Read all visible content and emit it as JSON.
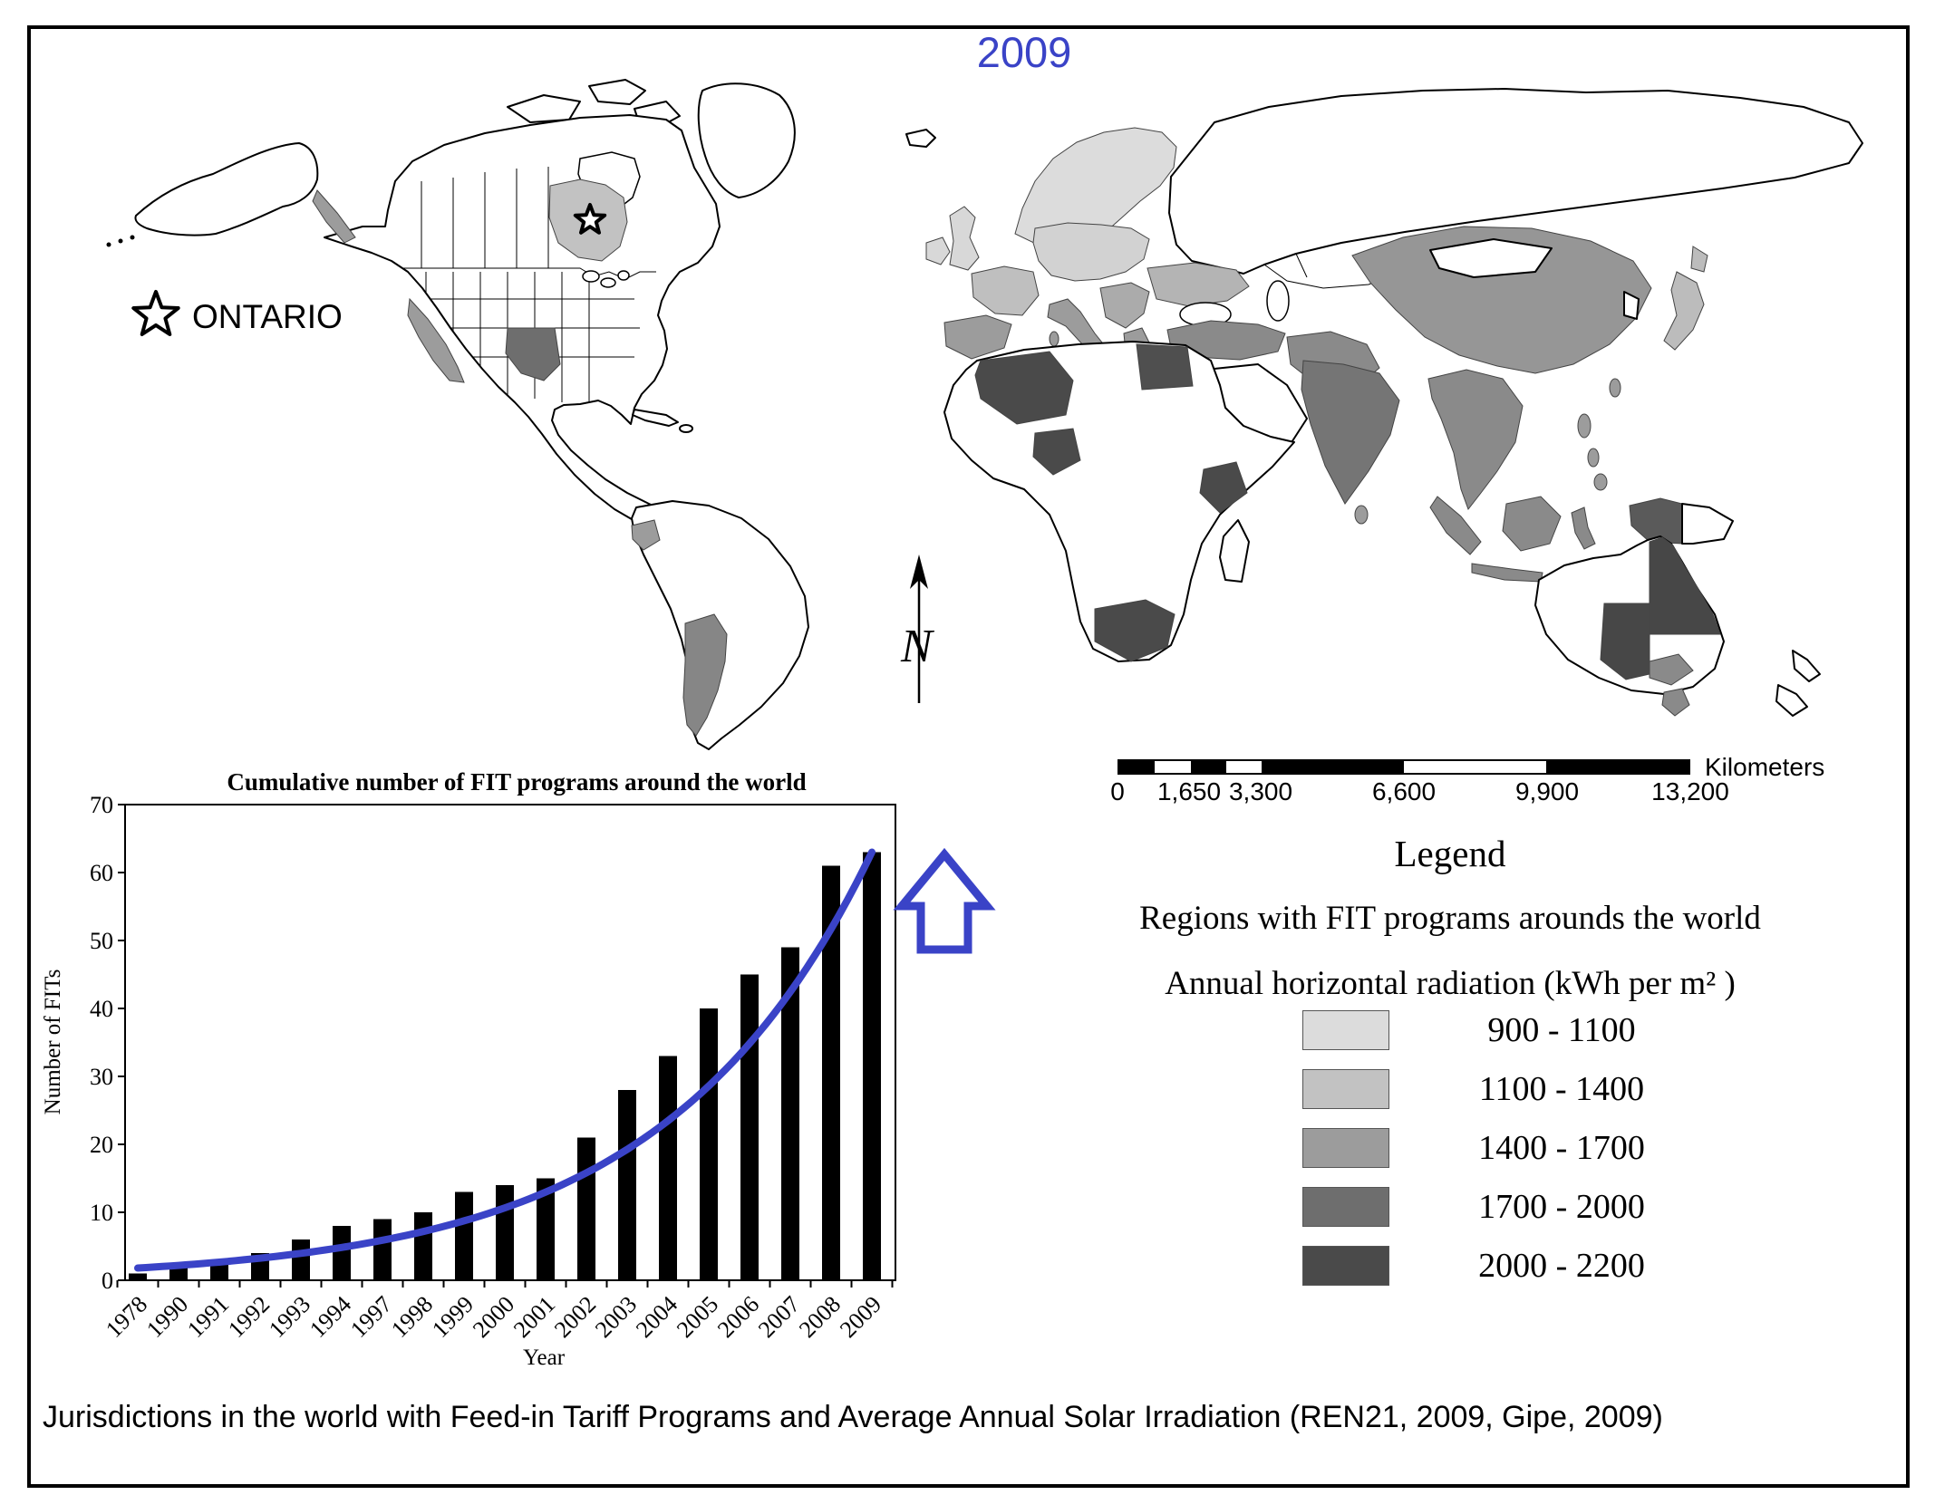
{
  "title_year": "2009",
  "ontario_label": "ONTARIO",
  "map": {
    "north_label": "N",
    "region_colors": {
      "ak_panhandle": "#9c9c9c",
      "ontario": "#c2c2c2",
      "california": "#9c9c9c",
      "texas": "#6e6e6e",
      "ecuador": "#9c9c9c",
      "argentina": "#868686",
      "scandinavia": "#dcdcdc",
      "uk": "#d8d8d8",
      "ireland": "#d8d8d8",
      "central_europe": "#d2d2d2",
      "france": "#bfbfbf",
      "iberia": "#9c9c9c",
      "italy": "#9c9c9c",
      "sicily": "#9c9c9c",
      "sardinia": "#9c9c9c",
      "balkans": "#ababab",
      "ukraine": "#b4b4b4",
      "greece": "#9c9c9c",
      "turkey": "#8a8a8a",
      "iran": "#8a8a8a",
      "algeria": "#4a4a4a",
      "egypt": "#4f4f4f",
      "nigeria": "#4a4a4a",
      "kenya": "#4a4a4a",
      "south_africa": "#4a4a4a",
      "india": "#757575",
      "sri_lanka": "#9c9c9c",
      "china": "#969696",
      "se_asia": "#8a8a8a",
      "japan": "#bcbcbc",
      "taiwan": "#9c9c9c",
      "philippines": "#9c9c9c",
      "borneo": "#8a8a8a",
      "sumatra": "#8a8a8a",
      "java": "#8a8a8a",
      "sulawesi": "#8a8a8a",
      "west_papua": "#5a5a5a",
      "australia_qld": "#474747",
      "australia_sa": "#474747",
      "australia_vic": "#8a8a8a",
      "tasmania": "#8a8a8a"
    },
    "legend": {
      "title": "Legend",
      "subtitle1": "Regions with FIT programs arounds the world",
      "subtitle2": "Annual horizontal radiation (kWh per m² )",
      "items": [
        {
          "range": "900 - 1100",
          "color": "#dcdcdc"
        },
        {
          "range": "1100 - 1400",
          "color": "#c2c2c2"
        },
        {
          "range": "1400 - 1700",
          "color": "#9c9c9c"
        },
        {
          "range": "1700 - 2000",
          "color": "#6e6e6e"
        },
        {
          "range": "2000 - 2200",
          "color": "#4a4a4a"
        }
      ]
    },
    "scalebar": {
      "labels": [
        "0",
        "1,650",
        "3,300",
        "6,600",
        "9,900",
        "13,200"
      ],
      "unit": "Kilometers"
    }
  },
  "chart_data": {
    "type": "bar",
    "title": "Cumulative number of FIT programs around the world",
    "xlabel": "Year",
    "ylabel": "Number of FITs",
    "categories": [
      "1978",
      "1990",
      "1991",
      "1992",
      "1993",
      "1994",
      "1997",
      "1998",
      "1999",
      "2000",
      "2001",
      "2002",
      "2003",
      "2004",
      "2005",
      "2006",
      "2007",
      "2008",
      "2009"
    ],
    "values": [
      1,
      2,
      3,
      4,
      6,
      8,
      9,
      10,
      13,
      14,
      15,
      21,
      28,
      33,
      40,
      45,
      49,
      61,
      63
    ],
    "ylim": [
      0,
      70
    ],
    "yticks": [
      0,
      10,
      20,
      30,
      40,
      50,
      60,
      70
    ],
    "bar_color": "#000000",
    "trend_color": "#3a43c7",
    "legend_position": "none",
    "grid": false
  },
  "colors": {
    "accent_blue": "#3a43c7"
  },
  "caption": "Jurisdictions in the world with Feed-in Tariff Programs and Average Annual Solar Irradiation (REN21, 2009, Gipe, 2009)"
}
